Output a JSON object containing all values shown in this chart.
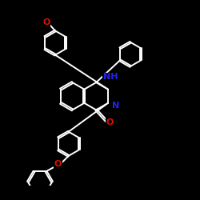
{
  "bg": "#000000",
  "bc": "#ffffff",
  "Nc": "#2222ee",
  "Oc": "#dd1100",
  "fs": 8.0,
  "lw": 1.4,
  "dbo": 0.048,
  "R": 0.72,
  "figsize": [
    2.5,
    2.5
  ],
  "dpi": 100,
  "xlim": [
    -1.0,
    9.5
  ],
  "ylim": [
    -2.5,
    6.5
  ]
}
